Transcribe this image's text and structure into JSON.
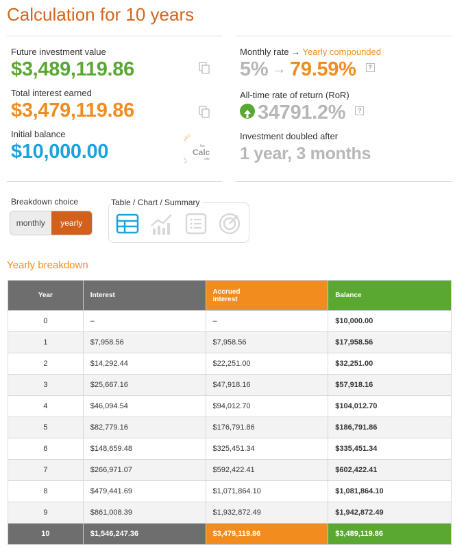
{
  "title": "Calculation for 10 years",
  "summary": {
    "future_value_label": "Future investment value",
    "future_value": "$3,489,119.86",
    "total_interest_label": "Total interest earned",
    "total_interest": "$3,479,119.86",
    "initial_balance_label": "Initial balance",
    "initial_balance": "$10,000.00",
    "monthly_rate_label": "Monthly rate →",
    "yearly_compounded_label": "Yearly compounded",
    "monthly_rate": "5%",
    "yearly_rate": "79.59%",
    "ror_label": "All-time rate of return (RoR)",
    "ror_value": "34791.2%",
    "doubled_label": "Investment doubled after",
    "doubled_value": "1 year, 3 months",
    "help_glyph": "?",
    "arrow_glyph": "→",
    "logo": {
      "digits": "1234567890",
      "the": "the",
      "calc": "Calc",
      "site": "site"
    }
  },
  "breakdown": {
    "label": "Breakdown choice",
    "monthly": "monthly",
    "yearly": "yearly",
    "selected": "yearly"
  },
  "view": {
    "label": "Table / Chart / Summary",
    "icons": [
      "table-icon",
      "chart-icon",
      "list-icon",
      "target-icon"
    ],
    "selected": "table-icon"
  },
  "table": {
    "title": "Yearly breakdown",
    "headers": {
      "year": "Year",
      "interest": "Interest",
      "accrued_1": "Accrued",
      "accrued_2": "interest",
      "balance": "Balance"
    },
    "rows": [
      {
        "year": "0",
        "interest": "–",
        "accrued": "–",
        "balance": "$10,000.00"
      },
      {
        "year": "1",
        "interest": "$7,958.56",
        "accrued": "$7,958.56",
        "balance": "$17,958.56"
      },
      {
        "year": "2",
        "interest": "$14,292.44",
        "accrued": "$22,251.00",
        "balance": "$32,251.00"
      },
      {
        "year": "3",
        "interest": "$25,667.16",
        "accrued": "$47,918.16",
        "balance": "$57,918.16"
      },
      {
        "year": "4",
        "interest": "$46,094.54",
        "accrued": "$94,012.70",
        "balance": "$104,012.70"
      },
      {
        "year": "5",
        "interest": "$82,779.16",
        "accrued": "$176,791.86",
        "balance": "$186,791.86"
      },
      {
        "year": "6",
        "interest": "$148,659.48",
        "accrued": "$325,451.34",
        "balance": "$335,451.34"
      },
      {
        "year": "7",
        "interest": "$266,971.07",
        "accrued": "$592,422.41",
        "balance": "$602,422.41"
      },
      {
        "year": "8",
        "interest": "$479,441.69",
        "accrued": "$1,071,864.10",
        "balance": "$1,081,864.10"
      },
      {
        "year": "9",
        "interest": "$861,008.39",
        "accrued": "$1,932,872.49",
        "balance": "$1,942,872.49"
      }
    ],
    "total": {
      "year": "10",
      "interest": "$1,546,247.36",
      "accrued": "$3,479,119.86",
      "balance": "$3,489,119.86"
    }
  },
  "colors": {
    "title": "#d4651c",
    "green": "#5aa832",
    "orange": "#f28c1e",
    "blue": "#1aa3e0",
    "grey_header": "#6e6e6e"
  }
}
